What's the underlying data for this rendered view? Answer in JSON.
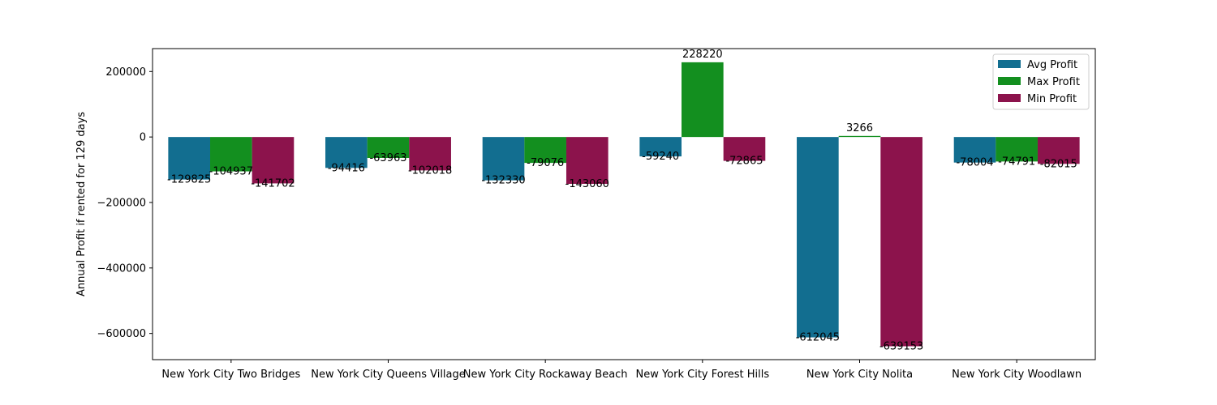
{
  "chart_data": {
    "type": "bar",
    "title": "",
    "xlabel": "",
    "ylabel": "Annual Profit if rented for 129 days",
    "ylim": [
      -680000,
      270000
    ],
    "yticks": [
      200000,
      0,
      -200000,
      -400000,
      -600000
    ],
    "ytick_labels": [
      "200000",
      "0",
      "−200000",
      "−400000",
      "−600000"
    ],
    "grid": false,
    "legend_position": "top-right",
    "categories": [
      "New York City Two Bridges",
      "New York City Queens Village",
      "New York City Rockaway Beach",
      "New York City Forest Hills",
      "New York City Nolita",
      "New York City Woodlawn"
    ],
    "series": [
      {
        "name": "Avg Profit",
        "color": "#126e90",
        "values": [
          -129825,
          -94416,
          -132330,
          -59240,
          -612045,
          -78004
        ]
      },
      {
        "name": "Max Profit",
        "color": "#138f1f",
        "values": [
          -104937,
          -63963,
          -79076,
          228220,
          3266,
          -74791
        ]
      },
      {
        "name": "Min Profit",
        "color": "#8c134c",
        "values": [
          -141702,
          -102018,
          -143060,
          -72865,
          -639153,
          -82015
        ]
      }
    ]
  }
}
